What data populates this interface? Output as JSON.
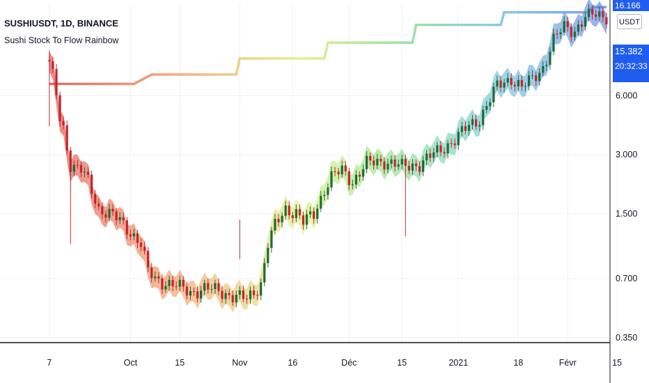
{
  "header": {
    "symbol": "SUSHIUSDT, 1D, BINANCE",
    "indicator": "Sushi Stock To Flow Rainbow"
  },
  "price_panel": {
    "currency_button": "USDT",
    "top_label": "16.166",
    "last_price": "15.382",
    "countdown": "20:32:33"
  },
  "colors": {
    "accent": "#1f5cf0",
    "up_candle": "#1e6b3a",
    "down_candle": "#c0272d",
    "axis_text": "#131722",
    "grid": "#eef0f3"
  },
  "chart_data": {
    "type": "line",
    "title": "",
    "y_scale": "log",
    "x_ticks": [
      "7",
      "Oct",
      "15",
      "Nov",
      "16",
      "Déc",
      "15",
      "2021",
      "18",
      "Févr",
      "15"
    ],
    "y_ticks": [
      "16.166",
      "6.000",
      "3.000",
      "1.500",
      "0.700",
      "0.350"
    ],
    "y_tick_values": [
      16.166,
      6.0,
      3.0,
      1.5,
      0.7,
      0.35
    ],
    "ylim": [
      0.33,
      17.6
    ],
    "x_range_days": [
      -14,
      159
    ],
    "series": [
      {
        "name": "price",
        "days": [
          0,
          1,
          2,
          3,
          4,
          5,
          6,
          7,
          9,
          11,
          14,
          17,
          20,
          23,
          26,
          28,
          30,
          33,
          36,
          40,
          44,
          48,
          52,
          56,
          60,
          62,
          64,
          67,
          70,
          72,
          75,
          78,
          80,
          83,
          86,
          90,
          95,
          100,
          105,
          110,
          115,
          119,
          122,
          127,
          131,
          134,
          137,
          140,
          143,
          146,
          149,
          152,
          155,
          158
        ],
        "values": [
          8.7,
          7.5,
          6.1,
          4.6,
          4.1,
          3.3,
          2.7,
          2.6,
          2.5,
          2.2,
          1.6,
          1.5,
          1.38,
          1.22,
          1.05,
          0.76,
          0.7,
          0.67,
          0.64,
          0.6,
          0.62,
          0.61,
          0.57,
          0.55,
          0.66,
          1.05,
          1.3,
          1.6,
          1.52,
          1.35,
          1.5,
          2.0,
          2.3,
          2.5,
          2.2,
          2.7,
          2.8,
          2.6,
          2.7,
          3.1,
          3.6,
          4.2,
          4.6,
          6.7,
          7.4,
          6.6,
          7.3,
          8.4,
          11.5,
          13.5,
          13.0,
          15.0,
          15.6,
          15.4
        ]
      },
      {
        "name": "rainbow steps",
        "days": [
          0,
          24,
          29,
          53,
          54,
          78,
          79,
          103,
          104,
          128,
          129,
          153,
          154,
          158
        ],
        "values": [
          6.9,
          6.9,
          7.7,
          7.7,
          9.3,
          9.3,
          11.2,
          11.2,
          13.8,
          13.8,
          16.0,
          16.0,
          17.0,
          17.0
        ]
      }
    ]
  }
}
